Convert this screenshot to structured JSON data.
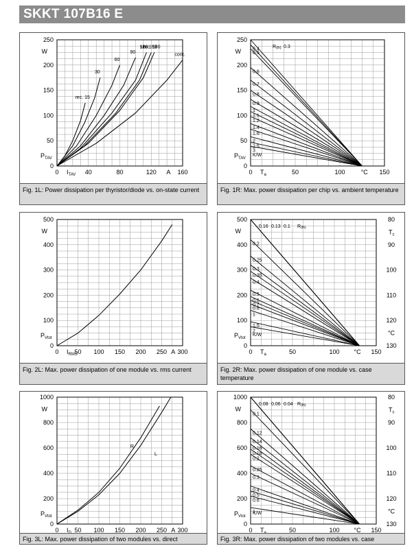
{
  "title": "SKKT 107B16 E",
  "colors": {
    "header_bg": "#8c8c8c",
    "caption_bg": "#d9d9d9",
    "grid": "#999999",
    "curve": "#000000"
  },
  "panels": [
    {
      "id": "1L",
      "caption": "Fig. 1L: Power dissipation per thyristor/diode vs. on-state current"
    },
    {
      "id": "1R",
      "caption": "Fig. 1R: Max. power dissipation per chip vs. ambient temperature"
    },
    {
      "id": "2L",
      "caption": "Fig. 2L: Max. power dissipation of one module vs. rms current"
    },
    {
      "id": "2R",
      "caption": "Fig. 2R: Max. power dissipation of one module vs. case temperature"
    },
    {
      "id": "3L",
      "caption": "Fig. 3L: Max. power dissipation of two modules vs. direct"
    },
    {
      "id": "3R",
      "caption": "Fig. 3R: Max. power dissipation of two modules vs. case"
    }
  ],
  "chart_data": [
    {
      "id": "1L",
      "type": "line",
      "xlim": [
        0,
        160
      ],
      "ylim": [
        0,
        250
      ],
      "xticks": [
        0,
        40,
        80,
        120,
        160
      ],
      "yticks": [
        0,
        50,
        100,
        150,
        200,
        250
      ],
      "xunit": "A",
      "yunit": "W",
      "xsym": "I",
      "xsub": "TAV",
      "ysym": "P",
      "ysub": "TAV",
      "series": [
        {
          "name": "rec. 15",
          "points": [
            [
              0,
              0
            ],
            [
              10,
              20
            ],
            [
              20,
              50
            ],
            [
              30,
              90
            ],
            [
              36,
              125
            ]
          ]
        },
        {
          "name": "30",
          "points": [
            [
              0,
              0
            ],
            [
              20,
              40
            ],
            [
              35,
              85
            ],
            [
              48,
              135
            ],
            [
              55,
              175
            ]
          ]
        },
        {
          "name": "60",
          "points": [
            [
              0,
              0
            ],
            [
              25,
              40
            ],
            [
              50,
              100
            ],
            [
              70,
              160
            ],
            [
              80,
              200
            ]
          ]
        },
        {
          "name": "90",
          "points": [
            [
              0,
              0
            ],
            [
              30,
              40
            ],
            [
              60,
              100
            ],
            [
              85,
              160
            ],
            [
              100,
              215
            ]
          ]
        },
        {
          "name": "120",
          "points": [
            [
              0,
              0
            ],
            [
              30,
              35
            ],
            [
              70,
              105
            ],
            [
              100,
              170
            ],
            [
              114,
              225
            ]
          ]
        },
        {
          "name": "sin. 180",
          "points": [
            [
              0,
              0
            ],
            [
              35,
              40
            ],
            [
              75,
              105
            ],
            [
              105,
              170
            ],
            [
              120,
              225
            ]
          ]
        },
        {
          "name": "rec. 180",
          "points": [
            [
              0,
              0
            ],
            [
              40,
              45
            ],
            [
              80,
              110
            ],
            [
              110,
              175
            ],
            [
              124,
              225
            ]
          ]
        },
        {
          "name": "cont.",
          "points": [
            [
              0,
              0
            ],
            [
              50,
              45
            ],
            [
              100,
              105
            ],
            [
              140,
              170
            ],
            [
              160,
              210
            ]
          ]
        }
      ]
    },
    {
      "id": "1R",
      "type": "line",
      "xlim": [
        0,
        150
      ],
      "ylim": [
        0,
        250
      ],
      "xticks": [
        0,
        50,
        100,
        150
      ],
      "yticks": [
        0,
        50,
        100,
        150,
        200,
        250
      ],
      "xunit": "°C",
      "yunit": "W",
      "xsym": "T",
      "xsub": "a",
      "ysym": "P",
      "ysub": "TAV",
      "param": "R(th)",
      "param_unit": "K/W",
      "lines": [
        {
          "label": "0.5",
          "p0": 232
        },
        {
          "label": "0.4",
          "p0": 240
        },
        {
          "label": "0.3",
          "p0": 250
        },
        {
          "label": "0.6",
          "p0": 195
        },
        {
          "label": "0.7",
          "p0": 170
        },
        {
          "label": "0.8",
          "p0": 150
        },
        {
          "label": "0.9",
          "p0": 132
        },
        {
          "label": "1",
          "p0": 118
        },
        {
          "label": "1.1",
          "p0": 108
        },
        {
          "label": "1.2",
          "p0": 98
        },
        {
          "label": "1.4",
          "p0": 84
        },
        {
          "label": "1.6",
          "p0": 73
        },
        {
          "label": "2",
          "p0": 58
        },
        {
          "label": "2.5",
          "p0": 47
        },
        {
          "label": "3",
          "p0": 39
        }
      ],
      "x_end": 125
    },
    {
      "id": "2L",
      "type": "line",
      "xlim": [
        0,
        300
      ],
      "ylim": [
        0,
        500
      ],
      "xticks": [
        0,
        50,
        100,
        150,
        200,
        250,
        300
      ],
      "yticks": [
        0,
        100,
        200,
        300,
        400,
        500
      ],
      "xunit": "A",
      "yunit": "W",
      "xsym": "I",
      "xsub": "RMS",
      "ysym": "P",
      "ysub": "Vtot",
      "series": [
        {
          "name": "",
          "points": [
            [
              0,
              0
            ],
            [
              50,
              50
            ],
            [
              100,
              120
            ],
            [
              150,
              205
            ],
            [
              200,
              300
            ],
            [
              250,
              415
            ],
            [
              275,
              480
            ]
          ]
        }
      ]
    },
    {
      "id": "2R",
      "type": "line",
      "xlim": [
        0,
        150
      ],
      "ylim": [
        0,
        500
      ],
      "xticks": [
        0,
        50,
        100,
        150
      ],
      "yticks": [
        0,
        100,
        200,
        300,
        400,
        500
      ],
      "x2ticks": [
        80,
        90,
        100,
        110,
        120,
        130
      ],
      "x2unit": "°C",
      "x2sym": "T",
      "x2sub": "c",
      "xunit": "°C",
      "yunit": "W",
      "xsym": "T",
      "xsub": "a",
      "ysym": "P",
      "ysub": "Vtot",
      "param": "R(th)",
      "param_unit": "K/W",
      "lines": [
        {
          "label": "0.16",
          "p0": 500
        },
        {
          "label": "0.13",
          "p0": 500
        },
        {
          "label": "0.1",
          "p0": 500
        },
        {
          "label": "0.2",
          "p0": 420
        },
        {
          "label": "0.25",
          "p0": 355
        },
        {
          "label": "0.3",
          "p0": 320
        },
        {
          "label": "0.35",
          "p0": 295
        },
        {
          "label": "0.4",
          "p0": 268
        },
        {
          "label": "0.5",
          "p0": 220
        },
        {
          "label": "0.6",
          "p0": 195
        },
        {
          "label": "0.7",
          "p0": 180
        },
        {
          "label": "0.8",
          "p0": 165
        },
        {
          "label": "1",
          "p0": 140
        },
        {
          "label": "1.5",
          "p0": 95
        },
        {
          "label": "2",
          "p0": 75
        }
      ],
      "x_end": 130
    },
    {
      "id": "3L",
      "type": "line",
      "xlim": [
        0,
        300
      ],
      "ylim": [
        0,
        1000
      ],
      "xticks": [
        0,
        50,
        100,
        150,
        200,
        250,
        300
      ],
      "yticks": [
        0,
        200,
        400,
        600,
        800,
        1000
      ],
      "xunit": "A",
      "yunit": "W",
      "xsym": "I",
      "xsub": "D",
      "ysym": "P",
      "ysub": "Vtot",
      "series": [
        {
          "name": "R",
          "points": [
            [
              0,
              0
            ],
            [
              50,
              110
            ],
            [
              100,
              250
            ],
            [
              150,
              440
            ],
            [
              200,
              680
            ],
            [
              245,
              930
            ]
          ]
        },
        {
          "name": "L",
          "points": [
            [
              0,
              0
            ],
            [
              50,
              100
            ],
            [
              100,
              230
            ],
            [
              150,
              400
            ],
            [
              200,
              620
            ],
            [
              250,
              880
            ],
            [
              272,
              1000
            ]
          ]
        }
      ]
    },
    {
      "id": "3R",
      "type": "line",
      "xlim": [
        0,
        150
      ],
      "ylim": [
        0,
        1000
      ],
      "xticks": [
        0,
        50,
        100,
        150
      ],
      "yticks": [
        0,
        200,
        400,
        600,
        800,
        1000
      ],
      "x2ticks": [
        80,
        90,
        100,
        110,
        120,
        130
      ],
      "x2unit": "°C",
      "x2sym": "T",
      "x2sub": "c",
      "xunit": "°C",
      "yunit": "W",
      "xsym": "T",
      "xsub": "a",
      "ysym": "P",
      "ysub": "Vtot",
      "param": "R(th)",
      "param_unit": "K/W",
      "lines": [
        {
          "label": "0.08",
          "p0": 1000
        },
        {
          "label": "0.06",
          "p0": 1000
        },
        {
          "label": "0.04",
          "p0": 1000
        },
        {
          "label": "0.1",
          "p0": 900
        },
        {
          "label": "0.12",
          "p0": 750
        },
        {
          "label": "0.14",
          "p0": 680
        },
        {
          "label": "0.16",
          "p0": 630
        },
        {
          "label": "0.18",
          "p0": 590
        },
        {
          "label": "0.2",
          "p0": 550
        },
        {
          "label": "0.25",
          "p0": 460
        },
        {
          "label": "0.3",
          "p0": 400
        },
        {
          "label": "0.4",
          "p0": 300
        },
        {
          "label": "0.5",
          "p0": 260
        },
        {
          "label": "0.6",
          "p0": 220
        },
        {
          "label": "1",
          "p0": 130
        }
      ],
      "x_end": 130
    }
  ]
}
